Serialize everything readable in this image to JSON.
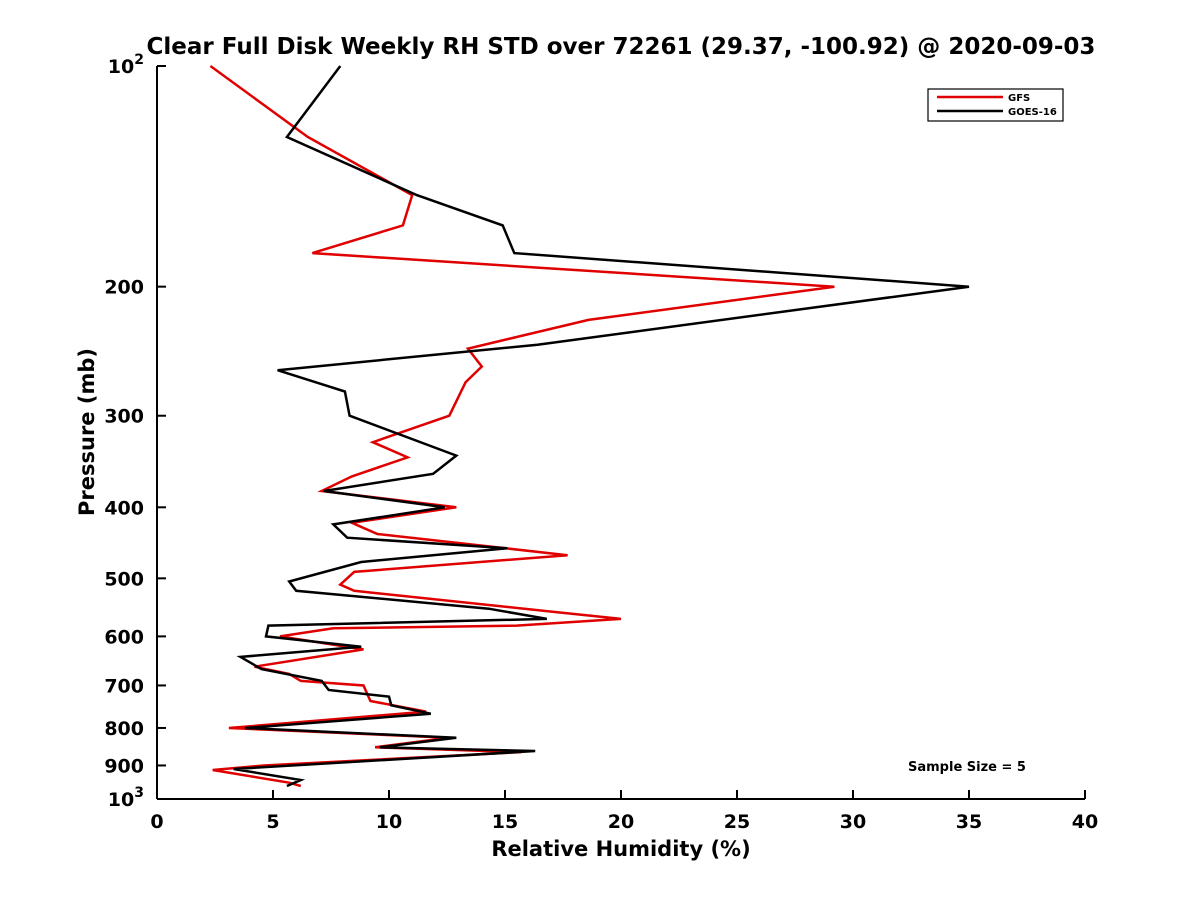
{
  "chart_data": {
    "type": "line",
    "title": "Clear Full Disk Weekly RH STD over 72261 (29.37, -100.92) @ 2020-09-03",
    "xlabel": "Relative Humidity (%)",
    "ylabel": "Pressure (mb)",
    "xlim": [
      0,
      40
    ],
    "ylim": [
      100,
      1000
    ],
    "y_scale": "log",
    "y_reversed": true,
    "grid": false,
    "legend_position": "top-right",
    "x_ticks": [
      0,
      5,
      10,
      15,
      20,
      25,
      30,
      35,
      40
    ],
    "y_ticks": [
      {
        "value": 100,
        "base": "10",
        "exp": "2"
      },
      {
        "value": 200,
        "label": "200"
      },
      {
        "value": 300,
        "label": "300"
      },
      {
        "value": 400,
        "label": "400"
      },
      {
        "value": 500,
        "label": "500"
      },
      {
        "value": 600,
        "label": "600"
      },
      {
        "value": 700,
        "label": "700"
      },
      {
        "value": 800,
        "label": "800"
      },
      {
        "value": 900,
        "label": "900"
      },
      {
        "value": 1000,
        "base": "10",
        "exp": "3"
      }
    ],
    "annotation": "Sample Size = 5",
    "series": [
      {
        "name": "GFS",
        "color": "#e00000",
        "points": [
          [
            2.3,
            100
          ],
          [
            6.5,
            125
          ],
          [
            11,
            150
          ],
          [
            10.6,
            165
          ],
          [
            6.7,
            180
          ],
          [
            29.2,
            200
          ],
          [
            18.6,
            222
          ],
          [
            13.4,
            243
          ],
          [
            14,
            257
          ],
          [
            13.3,
            270
          ],
          [
            12.6,
            300
          ],
          [
            9.3,
            326
          ],
          [
            10.8,
            342
          ],
          [
            8.4,
            363
          ],
          [
            7.1,
            380
          ],
          [
            12.9,
            400
          ],
          [
            8.4,
            420
          ],
          [
            9.5,
            435
          ],
          [
            17.7,
            465
          ],
          [
            8.5,
            490
          ],
          [
            7.9,
            510
          ],
          [
            8.5,
            520
          ],
          [
            17,
            555
          ],
          [
            20,
            568
          ],
          [
            15.5,
            580
          ],
          [
            7.6,
            585
          ],
          [
            5.3,
            600
          ],
          [
            8.9,
            625
          ],
          [
            4.2,
            660
          ],
          [
            5.7,
            675
          ],
          [
            6.2,
            690
          ],
          [
            8.9,
            700
          ],
          [
            9.2,
            735
          ],
          [
            11.6,
            760
          ],
          [
            3.1,
            800
          ],
          [
            12.6,
            825
          ],
          [
            9.4,
            850
          ],
          [
            15.7,
            863
          ],
          [
            4.6,
            900
          ],
          [
            2.4,
            913
          ],
          [
            5.7,
            950
          ],
          [
            6.2,
            960
          ]
        ]
      },
      {
        "name": "GOES-16",
        "color": "#000000",
        "points": [
          [
            7.9,
            100
          ],
          [
            5.6,
            125
          ],
          [
            11.2,
            150
          ],
          [
            14.9,
            165
          ],
          [
            15.4,
            180
          ],
          [
            35,
            200
          ],
          [
            16.4,
            240
          ],
          [
            5.2,
            260
          ],
          [
            8.1,
            278
          ],
          [
            8.3,
            300
          ],
          [
            12.9,
            340
          ],
          [
            11.9,
            360
          ],
          [
            7.2,
            380
          ],
          [
            12.4,
            400
          ],
          [
            7.6,
            422
          ],
          [
            8.2,
            440
          ],
          [
            15.1,
            455
          ],
          [
            8.8,
            475
          ],
          [
            5.7,
            505
          ],
          [
            6,
            520
          ],
          [
            14.3,
            550
          ],
          [
            16.8,
            568
          ],
          [
            4.8,
            580
          ],
          [
            4.7,
            600
          ],
          [
            8.8,
            620
          ],
          [
            3.6,
            640
          ],
          [
            4.5,
            665
          ],
          [
            7.1,
            690
          ],
          [
            7.4,
            710
          ],
          [
            10,
            725
          ],
          [
            10.1,
            745
          ],
          [
            11.8,
            765
          ],
          [
            3.8,
            800
          ],
          [
            12.9,
            825
          ],
          [
            9.6,
            850
          ],
          [
            16.3,
            860
          ],
          [
            3.3,
            910
          ],
          [
            6.2,
            942
          ],
          [
            5.6,
            960
          ]
        ]
      }
    ]
  }
}
